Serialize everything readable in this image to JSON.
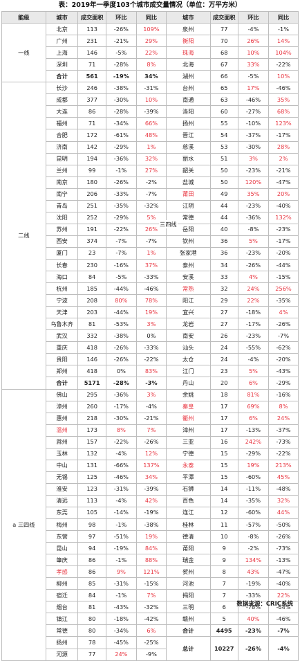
{
  "title": "表：2019年一季度103个城市成交量情况（单位：万平方米）",
  "source": "数据来源：CRIC系统",
  "headers": [
    "能级",
    "城市",
    "成交面积",
    "环比",
    "同比",
    "城市",
    "成交面积",
    "环比",
    "同比"
  ],
  "tiers": {
    "yixian": "一线",
    "erxian": "二线",
    "sansixian": "三四线",
    "a_sansixian": "a 三四线"
  },
  "rows": [
    {
      "left": [
        "北京",
        "113",
        "-26%",
        "109%"
      ],
      "lr": [
        "",
        "",
        "",
        "r"
      ],
      "right": [
        "泉州",
        "77",
        "-4%",
        "-1%"
      ],
      "rr": [
        "",
        "",
        "",
        ""
      ]
    },
    {
      "left": [
        "广州",
        "231",
        "-21%",
        "29%"
      ],
      "lr": [
        "",
        "",
        "",
        "r"
      ],
      "right": [
        "衡阳",
        "70",
        "26%",
        "14%"
      ],
      "rr": [
        "r",
        "",
        "r",
        "r"
      ]
    },
    {
      "left": [
        "上海",
        "146",
        "-5%",
        "22%"
      ],
      "lr": [
        "",
        "",
        "",
        "r"
      ],
      "right": [
        "珠海",
        "68",
        "10%",
        "104%"
      ],
      "rr": [
        "r",
        "",
        "r",
        "r"
      ]
    },
    {
      "left": [
        "深圳",
        "71",
        "-28%",
        "8%"
      ],
      "lr": [
        "",
        "",
        "",
        "r"
      ],
      "right": [
        "北海",
        "67",
        "33%",
        "-22%"
      ],
      "rr": [
        "",
        "",
        "r",
        ""
      ]
    },
    {
      "left": [
        "合计",
        "561",
        "-19%",
        "34%"
      ],
      "lr": [
        "",
        "",
        "",
        ""
      ],
      "right": [
        "湖州",
        "66",
        "-5%",
        "10%"
      ],
      "rr": [
        "",
        "",
        "",
        "r"
      ],
      "ltot": true
    },
    {
      "left": [
        "长沙",
        "246",
        "-38%",
        "-31%"
      ],
      "lr": [
        "",
        "",
        "",
        ""
      ],
      "right": [
        "台州",
        "65",
        "17%",
        "-46%"
      ],
      "rr": [
        "",
        "",
        "r",
        ""
      ]
    },
    {
      "left": [
        "成都",
        "377",
        "-30%",
        "10%"
      ],
      "lr": [
        "",
        "",
        "",
        "r"
      ],
      "right": [
        "南通",
        "63",
        "-46%",
        "35%"
      ],
      "rr": [
        "",
        "",
        "",
        "r"
      ]
    },
    {
      "left": [
        "大连",
        "86",
        "-28%",
        "-39%"
      ],
      "lr": [
        "",
        "",
        "",
        ""
      ],
      "right": [
        "洛阳",
        "60",
        "-27%",
        "68%"
      ],
      "rr": [
        "",
        "",
        "",
        "r"
      ]
    },
    {
      "left": [
        "福州",
        "71",
        "-34%",
        "66%"
      ],
      "lr": [
        "",
        "",
        "",
        "r"
      ],
      "right": [
        "扬州",
        "55",
        "-10%",
        "123%"
      ],
      "rr": [
        "",
        "",
        "",
        "r"
      ]
    },
    {
      "left": [
        "合肥",
        "172",
        "-61%",
        "48%"
      ],
      "lr": [
        "",
        "",
        "",
        "r"
      ],
      "right": [
        "晋江",
        "54",
        "-37%",
        "-17%"
      ],
      "rr": [
        "",
        "",
        "",
        ""
      ]
    },
    {
      "left": [
        "济南",
        "142",
        "-29%",
        "1%"
      ],
      "lr": [
        "",
        "",
        "",
        "r"
      ],
      "right": [
        "慈溪",
        "53",
        "-30%",
        "28%"
      ],
      "rr": [
        "",
        "",
        "",
        "r"
      ]
    },
    {
      "left": [
        "昆明",
        "194",
        "-36%",
        "32%"
      ],
      "lr": [
        "",
        "",
        "",
        "r"
      ],
      "right": [
        "丽水",
        "51",
        "3%",
        "2%"
      ],
      "rr": [
        "",
        "",
        "r",
        "r"
      ]
    },
    {
      "left": [
        "兰州",
        "99",
        "-1%",
        "27%"
      ],
      "lr": [
        "",
        "",
        "",
        "r"
      ],
      "right": [
        "韶关",
        "50",
        "-23%",
        "-21%"
      ],
      "rr": [
        "",
        "",
        "",
        ""
      ]
    },
    {
      "left": [
        "南京",
        "180",
        "-26%",
        "-2%"
      ],
      "lr": [
        "",
        "",
        "",
        ""
      ],
      "right": [
        "盐城",
        "50",
        "120%",
        "-47%"
      ],
      "rr": [
        "",
        "",
        "r",
        ""
      ]
    },
    {
      "left": [
        "南宁",
        "206",
        "-33%",
        "-7%"
      ],
      "lr": [
        "",
        "",
        "",
        ""
      ],
      "right": [
        "莆田",
        "49",
        "35%",
        "20%"
      ],
      "rr": [
        "r",
        "",
        "r",
        "r"
      ]
    },
    {
      "left": [
        "青岛",
        "251",
        "-35%",
        "-32%"
      ],
      "lr": [
        "",
        "",
        "",
        ""
      ],
      "right": [
        "江阴",
        "44",
        "-23%",
        "-40%"
      ],
      "rr": [
        "",
        "",
        "",
        ""
      ]
    },
    {
      "left": [
        "沈阳",
        "252",
        "-29%",
        "5%"
      ],
      "lr": [
        "",
        "",
        "",
        "r"
      ],
      "right": [
        "常德",
        "44",
        "-36%",
        "132%"
      ],
      "rr": [
        "",
        "",
        "",
        "r"
      ]
    },
    {
      "left": [
        "苏州",
        "191",
        "-22%",
        "26%"
      ],
      "lr": [
        "",
        "",
        "",
        "r"
      ],
      "right": [
        "岳阳",
        "40",
        "-8%",
        "-23%"
      ],
      "rr": [
        "",
        "",
        "",
        ""
      ]
    },
    {
      "left": [
        "西安",
        "374",
        "-7%",
        "-7%"
      ],
      "lr": [
        "",
        "",
        "",
        ""
      ],
      "right": [
        "钦州",
        "36",
        "5%",
        "-17%"
      ],
      "rr": [
        "",
        "",
        "r",
        ""
      ]
    },
    {
      "left": [
        "厦门",
        "23",
        "-7%",
        "1%"
      ],
      "lr": [
        "",
        "",
        "",
        "r"
      ],
      "right": [
        "张家港",
        "36",
        "-23%",
        "-20%"
      ],
      "rr": [
        "",
        "",
        "",
        ""
      ]
    },
    {
      "left": [
        "长春",
        "230",
        "-16%",
        "37%"
      ],
      "lr": [
        "",
        "",
        "",
        "r"
      ],
      "right": [
        "泰州",
        "34",
        "-26%",
        "-44%"
      ],
      "rr": [
        "",
        "",
        "",
        ""
      ]
    },
    {
      "left": [
        "海口",
        "84",
        "-5%",
        "-33%"
      ],
      "lr": [
        "",
        "",
        "",
        ""
      ],
      "right": [
        "安溪",
        "33",
        "4%",
        "-15%"
      ],
      "rr": [
        "",
        "",
        "r",
        ""
      ]
    },
    {
      "left": [
        "杭州",
        "185",
        "-44%",
        "-46%"
      ],
      "lr": [
        "",
        "",
        "",
        ""
      ],
      "right": [
        "常熟",
        "32",
        "24%",
        "256%"
      ],
      "rr": [
        "r",
        "",
        "r",
        "r"
      ]
    },
    {
      "left": [
        "宁波",
        "208",
        "80%",
        "78%"
      ],
      "lr": [
        "",
        "",
        "r",
        "r"
      ],
      "right": [
        "阳江",
        "29",
        "22%",
        "-35%"
      ],
      "rr": [
        "",
        "",
        "r",
        ""
      ]
    },
    {
      "left": [
        "天津",
        "203",
        "-44%",
        "19%"
      ],
      "lr": [
        "",
        "",
        "",
        "r"
      ],
      "right": [
        "宜兴",
        "27",
        "-18%",
        "4%"
      ],
      "rr": [
        "",
        "",
        "",
        "r"
      ]
    },
    {
      "left": [
        "乌鲁木齐",
        "81",
        "-53%",
        "3%"
      ],
      "lr": [
        "",
        "",
        "",
        "r"
      ],
      "right": [
        "龙岩",
        "27",
        "-17%",
        "-26%"
      ],
      "rr": [
        "",
        "",
        "",
        ""
      ]
    },
    {
      "left": [
        "武汉",
        "332",
        "-38%",
        "0%"
      ],
      "lr": [
        "",
        "",
        "",
        ""
      ],
      "right": [
        "南安",
        "26",
        "-23%",
        "-7%"
      ],
      "rr": [
        "",
        "",
        "",
        ""
      ]
    },
    {
      "left": [
        "重庆",
        "418",
        "-26%",
        "-33%"
      ],
      "lr": [
        "",
        "",
        "",
        ""
      ],
      "right": [
        "汕头",
        "24",
        "-55%",
        "-62%"
      ],
      "rr": [
        "",
        "",
        "",
        ""
      ]
    },
    {
      "left": [
        "贵阳",
        "146",
        "-26%",
        "-22%"
      ],
      "lr": [
        "",
        "",
        "",
        ""
      ],
      "right": [
        "太仓",
        "24",
        "-4%",
        "-20%"
      ],
      "rr": [
        "",
        "",
        "",
        ""
      ]
    },
    {
      "left": [
        "郑州",
        "418",
        "0%",
        "83%"
      ],
      "lr": [
        "",
        "",
        "",
        "r"
      ],
      "right": [
        "江门",
        "23",
        "5%",
        "-43%"
      ],
      "rr": [
        "",
        "",
        "r",
        ""
      ]
    },
    {
      "left": [
        "合计",
        "5171",
        "-28%",
        "-3%"
      ],
      "lr": [
        "",
        "",
        "",
        ""
      ],
      "right": [
        "丹山",
        "20",
        "6%",
        "-29%"
      ],
      "rr": [
        "",
        "",
        "r",
        ""
      ],
      "ltot": true
    },
    {
      "left": [
        "佛山",
        "295",
        "-36%",
        "3%"
      ],
      "lr": [
        "",
        "",
        "",
        "r"
      ],
      "right": [
        "余姚",
        "18",
        "81%",
        "-16%"
      ],
      "rr": [
        "",
        "",
        "r",
        ""
      ]
    },
    {
      "left": [
        "漳州",
        "260",
        "-17%",
        "-4%"
      ],
      "lr": [
        "",
        "",
        "",
        ""
      ],
      "right": [
        "秦皇",
        "17",
        "69%",
        "8%"
      ],
      "rr": [
        "r",
        "",
        "r",
        "r"
      ]
    },
    {
      "left": [
        "惠州",
        "218",
        "-30%",
        "-21%"
      ],
      "lr": [
        "",
        "",
        "",
        ""
      ],
      "right": [
        "衢州",
        "17",
        "6%",
        "24%"
      ],
      "rr": [
        "r",
        "",
        "r",
        "r"
      ]
    },
    {
      "left": [
        "温州",
        "173",
        "8%",
        "7%"
      ],
      "lr": [
        "r",
        "",
        "r",
        "r"
      ],
      "right": [
        "漳州",
        "17",
        "-13%",
        "-37%"
      ],
      "rr": [
        "",
        "",
        "",
        ""
      ]
    },
    {
      "left": [
        "滁州",
        "157",
        "-22%",
        "-26%"
      ],
      "lr": [
        "",
        "",
        "",
        ""
      ],
      "right": [
        "三亚",
        "16",
        "242%",
        "-73%"
      ],
      "rr": [
        "",
        "",
        "r",
        ""
      ]
    },
    {
      "left": [
        "玉林",
        "132",
        "-4%",
        "12%"
      ],
      "lr": [
        "",
        "",
        "",
        "r"
      ],
      "right": [
        "宁德",
        "15",
        "-29%",
        "-22%"
      ],
      "rr": [
        "",
        "",
        "",
        ""
      ]
    },
    {
      "left": [
        "中山",
        "131",
        "-66%",
        "137%"
      ],
      "lr": [
        "",
        "",
        "",
        "r"
      ],
      "right": [
        "永泰",
        "15",
        "19%",
        "213%"
      ],
      "rr": [
        "r",
        "",
        "r",
        "r"
      ]
    },
    {
      "left": [
        "无锡",
        "125",
        "-46%",
        "34%"
      ],
      "lr": [
        "",
        "",
        "",
        "r"
      ],
      "right": [
        "平潭",
        "15",
        "-60%",
        "45%"
      ],
      "rr": [
        "",
        "",
        "",
        "r"
      ]
    },
    {
      "left": [
        "淮安",
        "123",
        "-31%",
        "-39%"
      ],
      "lr": [
        "",
        "",
        "",
        ""
      ],
      "right": [
        "石狮",
        "14",
        "-11%",
        "-48%"
      ],
      "rr": [
        "",
        "",
        "",
        ""
      ]
    },
    {
      "left": [
        "清远",
        "113",
        "-4%",
        "42%"
      ],
      "lr": [
        "",
        "",
        "",
        "r"
      ],
      "right": [
        "百色",
        "14",
        "-35%",
        "32%"
      ],
      "rr": [
        "",
        "",
        "",
        "r"
      ]
    },
    {
      "left": [
        "东莞",
        "105",
        "-14%",
        "-19%"
      ],
      "lr": [
        "",
        "",
        "",
        ""
      ],
      "right": [
        "连江",
        "12",
        "-60%",
        "44%"
      ],
      "rr": [
        "",
        "",
        "",
        "r"
      ]
    },
    {
      "left": [
        "梅州",
        "98",
        "-1%",
        "-38%"
      ],
      "lr": [
        "",
        "",
        "",
        ""
      ],
      "right": [
        "桂林",
        "11",
        "-57%",
        "-50%"
      ],
      "rr": [
        "",
        "",
        "",
        ""
      ]
    },
    {
      "left": [
        "东营",
        "97",
        "-51%",
        "19%"
      ],
      "lr": [
        "",
        "",
        "",
        "r"
      ],
      "right": [
        "德清",
        "10",
        "-8%",
        "-26%"
      ],
      "rr": [
        "",
        "",
        "",
        ""
      ]
    },
    {
      "left": [
        "昆山",
        "94",
        "-19%",
        "84%"
      ],
      "lr": [
        "",
        "",
        "",
        "r"
      ],
      "right": [
        "莆阳",
        "9",
        "-2%",
        "-73%"
      ],
      "rr": [
        "",
        "",
        "",
        ""
      ]
    },
    {
      "left": [
        "肇庆",
        "86",
        "-1%",
        "88%"
      ],
      "lr": [
        "",
        "",
        "",
        "r"
      ],
      "right": [
        "瑞金",
        "9",
        "134%",
        "-13%"
      ],
      "rr": [
        "",
        "",
        "r",
        ""
      ]
    },
    {
      "left": [
        "孝感",
        "86",
        "9%",
        "121%"
      ],
      "lr": [
        "r",
        "",
        "r",
        "r"
      ],
      "right": [
        "贺州",
        "8",
        "43%",
        "-47%"
      ],
      "rr": [
        "",
        "",
        "r",
        ""
      ]
    },
    {
      "left": [
        "柳州",
        "85",
        "-31%",
        "-15%"
      ],
      "lr": [
        "",
        "",
        "",
        ""
      ],
      "right": [
        "河池",
        "7",
        "-19%",
        "-40%"
      ],
      "rr": [
        "",
        "",
        "",
        ""
      ]
    },
    {
      "left": [
        "宿迁",
        "84",
        "-1%",
        "7%"
      ],
      "lr": [
        "",
        "",
        "",
        "r"
      ],
      "right": [
        "揭阳",
        "7",
        "-33%",
        "22%"
      ],
      "rr": [
        "",
        "",
        "",
        "r"
      ]
    },
    {
      "left": [
        "烟台",
        "81",
        "-43%",
        "-32%"
      ],
      "lr": [
        "",
        "",
        "",
        ""
      ],
      "right": [
        "三明",
        "6",
        "-78%",
        "-64%"
      ],
      "rr": [
        "",
        "",
        "",
        ""
      ]
    },
    {
      "left": [
        "镇江",
        "80",
        "-18%",
        "-42%"
      ],
      "lr": [
        "",
        "",
        "",
        ""
      ],
      "right": [
        "赣州",
        "5",
        "40%",
        "-46%"
      ],
      "rr": [
        "",
        "",
        "r",
        ""
      ]
    },
    {
      "left": [
        "常德",
        "80",
        "-34%",
        "6%"
      ],
      "lr": [
        "",
        "",
        "",
        "r"
      ],
      "right": [
        "合计",
        "4495",
        "-23%",
        "-7%"
      ],
      "rr": [
        "",
        "",
        "",
        ""
      ],
      "rtot": true
    },
    {
      "left": [
        "扬州",
        "78",
        "-45%",
        "-25%"
      ],
      "lr": [
        "",
        "",
        "",
        ""
      ],
      "right": null
    },
    {
      "left": [
        "河源",
        "77",
        "24%",
        "-9%"
      ],
      "lr": [
        "",
        "",
        "r",
        ""
      ],
      "right": null
    }
  ],
  "grand_total": {
    "label": "总计",
    "area": "10227",
    "mom": "-26%",
    "yoy": "-4%"
  }
}
